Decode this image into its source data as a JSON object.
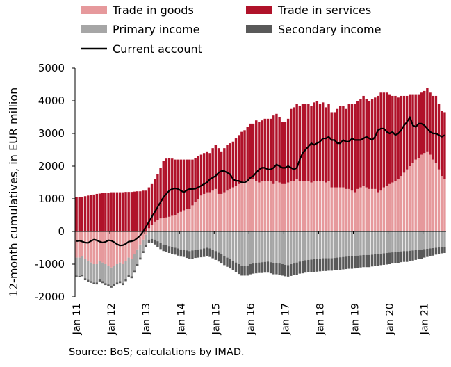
{
  "chart_data": {
    "type": "bar",
    "stacked": true,
    "x_start": "2011-01",
    "x_end": "2021-08",
    "frequency": "monthly",
    "xticks": [
      "Jan 11",
      "Jan 12",
      "Jan 13",
      "Jan 14",
      "Jan 15",
      "Jan 16",
      "Jan 17",
      "Jan 18",
      "Jan 19",
      "Jan 20",
      "Jan 21"
    ],
    "ylabel": "12-month cumulatives, in EUR million",
    "ylim": [
      -2000,
      5000
    ],
    "yticks": [
      -2000,
      -1000,
      0,
      1000,
      2000,
      3000,
      4000,
      5000
    ],
    "ytick_labels": [
      "-2000",
      "-1000",
      "0",
      "1000",
      "2000",
      "3000",
      "4000",
      "5000"
    ],
    "grid": false,
    "legend_position": "top",
    "series": [
      {
        "name": "Trade in goods",
        "kind": "bar",
        "color": "#e6999c",
        "values": [
          -800,
          -800,
          -750,
          -850,
          -900,
          -950,
          -1000,
          -1000,
          -900,
          -950,
          -1000,
          -1050,
          -1100,
          -1050,
          -1000,
          -950,
          -1000,
          -900,
          -800,
          -850,
          -700,
          -550,
          -400,
          -250,
          -100,
          100,
          200,
          300,
          350,
          400,
          420,
          430,
          450,
          480,
          500,
          550,
          600,
          650,
          700,
          700,
          800,
          900,
          1000,
          1100,
          1150,
          1200,
          1200,
          1250,
          1300,
          1150,
          1150,
          1200,
          1250,
          1300,
          1350,
          1400,
          1450,
          1500,
          1550,
          1550,
          1600,
          1600,
          1550,
          1500,
          1550,
          1550,
          1550,
          1550,
          1450,
          1550,
          1500,
          1450,
          1450,
          1500,
          1550,
          1550,
          1600,
          1550,
          1550,
          1550,
          1550,
          1500,
          1550,
          1550,
          1550,
          1550,
          1500,
          1550,
          1350,
          1350,
          1350,
          1350,
          1350,
          1300,
          1300,
          1250,
          1200,
          1300,
          1350,
          1400,
          1350,
          1300,
          1300,
          1300,
          1200,
          1250,
          1350,
          1400,
          1450,
          1500,
          1550,
          1600,
          1700,
          1800,
          1900,
          2000,
          2100,
          2200,
          2250,
          2350,
          2400,
          2450,
          2350,
          2200,
          2100,
          1900,
          1700,
          1600
        ]
      },
      {
        "name": "Trade in services",
        "kind": "bar",
        "color": "#b0122a",
        "values": [
          1050,
          1050,
          1060,
          1080,
          1100,
          1110,
          1130,
          1150,
          1160,
          1170,
          1180,
          1190,
          1200,
          1200,
          1200,
          1200,
          1200,
          1210,
          1210,
          1210,
          1220,
          1230,
          1230,
          1250,
          1250,
          1250,
          1250,
          1300,
          1400,
          1550,
          1750,
          1800,
          1800,
          1750,
          1700,
          1650,
          1600,
          1550,
          1500,
          1500,
          1400,
          1350,
          1300,
          1250,
          1250,
          1250,
          1200,
          1300,
          1350,
          1400,
          1300,
          1350,
          1400,
          1400,
          1400,
          1450,
          1500,
          1550,
          1550,
          1650,
          1700,
          1700,
          1850,
          1850,
          1850,
          1900,
          1900,
          1900,
          2100,
          2050,
          2000,
          1900,
          1900,
          1950,
          2200,
          2250,
          2300,
          2300,
          2350,
          2350,
          2350,
          2350,
          2400,
          2450,
          2350,
          2400,
          2300,
          2350,
          2300,
          2300,
          2400,
          2500,
          2500,
          2450,
          2600,
          2650,
          2700,
          2700,
          2700,
          2750,
          2700,
          2700,
          2750,
          2800,
          2950,
          3000,
          2900,
          2850,
          2750,
          2650,
          2600,
          2500,
          2450,
          2350,
          2250,
          2200,
          2100,
          2000,
          1950,
          1900,
          1900,
          1950,
          1900,
          1950,
          2050,
          2000,
          2000,
          2050
        ]
      },
      {
        "name": "Primary income",
        "kind": "bar",
        "color": "#a6a6a6",
        "values": [
          -550,
          -560,
          -570,
          -580,
          -580,
          -570,
          -560,
          -560,
          -570,
          -570,
          -580,
          -570,
          -560,
          -550,
          -560,
          -570,
          -580,
          -560,
          -540,
          -520,
          -500,
          -450,
          -400,
          -350,
          -300,
          -250,
          -230,
          -250,
          -300,
          -350,
          -400,
          -420,
          -450,
          -480,
          -500,
          -520,
          -550,
          -560,
          -580,
          -600,
          -580,
          -560,
          -550,
          -540,
          -520,
          -500,
          -520,
          -560,
          -600,
          -650,
          -700,
          -750,
          -800,
          -850,
          -900,
          -950,
          -1000,
          -1050,
          -1050,
          -1050,
          -1000,
          -980,
          -960,
          -950,
          -940,
          -930,
          -920,
          -940,
          -960,
          -960,
          -980,
          -1000,
          -1020,
          -1030,
          -1000,
          -980,
          -950,
          -920,
          -900,
          -880,
          -870,
          -860,
          -850,
          -840,
          -830,
          -820,
          -820,
          -820,
          -820,
          -810,
          -800,
          -790,
          -780,
          -770,
          -760,
          -760,
          -750,
          -740,
          -730,
          -720,
          -720,
          -720,
          -710,
          -700,
          -690,
          -680,
          -670,
          -660,
          -650,
          -640,
          -630,
          -620,
          -610,
          -600,
          -600,
          -590,
          -580,
          -570,
          -560,
          -550,
          -540,
          -530,
          -520,
          -510,
          -500,
          -490,
          -480,
          -480
        ]
      },
      {
        "name": "Secondary income",
        "kind": "bar",
        "color": "#595959",
        "values": [
          -30,
          -40,
          -50,
          -60,
          -60,
          -50,
          -50,
          -60,
          -60,
          -60,
          -60,
          -60,
          -60,
          -60,
          -60,
          -60,
          -60,
          -60,
          -60,
          -60,
          -60,
          -60,
          -60,
          -60,
          -80,
          -100,
          -120,
          -150,
          -170,
          -190,
          -200,
          -210,
          -210,
          -210,
          -210,
          -220,
          -220,
          -220,
          -230,
          -240,
          -250,
          -250,
          -250,
          -250,
          -260,
          -260,
          -260,
          -260,
          -270,
          -270,
          -280,
          -280,
          -280,
          -280,
          -290,
          -300,
          -300,
          -300,
          -300,
          -300,
          -310,
          -310,
          -320,
          -320,
          -330,
          -330,
          -340,
          -340,
          -350,
          -350,
          -350,
          -350,
          -350,
          -350,
          -360,
          -360,
          -370,
          -370,
          -380,
          -380,
          -380,
          -380,
          -390,
          -390,
          -390,
          -390,
          -390,
          -380,
          -380,
          -380,
          -380,
          -380,
          -380,
          -380,
          -380,
          -380,
          -380,
          -370,
          -370,
          -370,
          -370,
          -370,
          -360,
          -360,
          -360,
          -350,
          -350,
          -350,
          -350,
          -340,
          -340,
          -340,
          -330,
          -330,
          -330,
          -320,
          -310,
          -300,
          -290,
          -280,
          -260,
          -250,
          -240,
          -230,
          -210,
          -200,
          -190,
          -180
        ]
      },
      {
        "name": "Current account",
        "kind": "line",
        "color": "#000000",
        "values": [
          -300,
          -280,
          -310,
          -340,
          -350,
          -290,
          -250,
          -270,
          -310,
          -340,
          -320,
          -270,
          -280,
          -330,
          -390,
          -430,
          -420,
          -380,
          -310,
          -300,
          -270,
          -200,
          -120,
          0,
          150,
          300,
          450,
          600,
          750,
          900,
          1050,
          1150,
          1250,
          1300,
          1320,
          1300,
          1250,
          1200,
          1260,
          1300,
          1300,
          1310,
          1350,
          1400,
          1450,
          1500,
          1600,
          1650,
          1700,
          1800,
          1850,
          1850,
          1800,
          1750,
          1600,
          1550,
          1550,
          1500,
          1500,
          1550,
          1650,
          1700,
          1800,
          1900,
          1950,
          1950,
          1900,
          1900,
          1950,
          2050,
          2000,
          1950,
          1950,
          2000,
          1950,
          1900,
          1950,
          2200,
          2400,
          2500,
          2600,
          2700,
          2650,
          2700,
          2750,
          2850,
          2850,
          2900,
          2800,
          2800,
          2700,
          2700,
          2800,
          2750,
          2750,
          2850,
          2800,
          2800,
          2800,
          2850,
          2900,
          2850,
          2800,
          2900,
          3100,
          3150,
          3150,
          3050,
          3000,
          3050,
          2950,
          3000,
          3100,
          3250,
          3350,
          3500,
          3250,
          3200,
          3300,
          3300,
          3250,
          3150,
          3050,
          3000,
          3000,
          2950,
          2900,
          2950
        ]
      }
    ]
  },
  "source_note": "Source: BoS; calculations by IMAD."
}
